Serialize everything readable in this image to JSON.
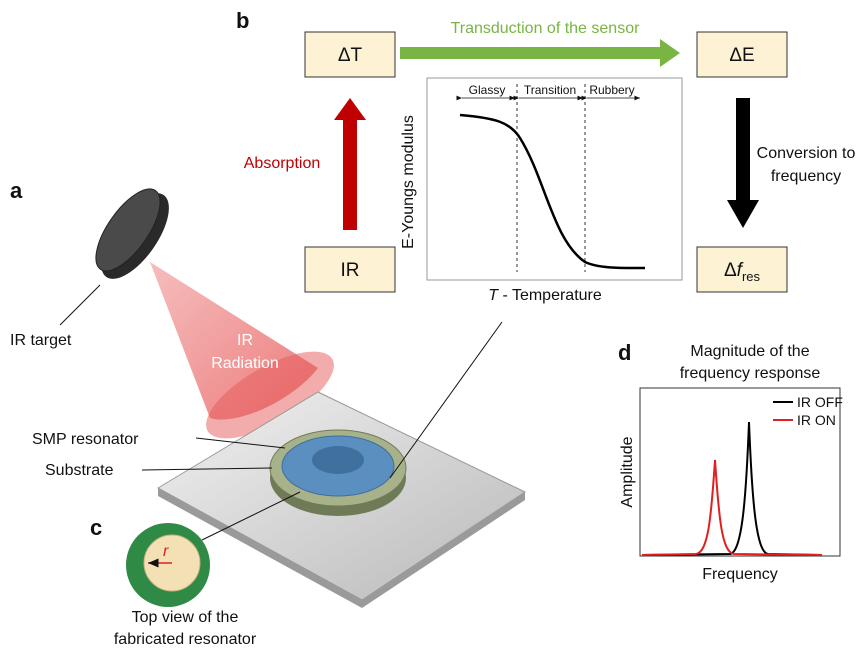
{
  "panels": {
    "a": "a",
    "b": "b",
    "c": "c",
    "d": "d"
  },
  "boxes": {
    "delta_t": "ΔT",
    "delta_e": "ΔE",
    "ir": "IR",
    "delta_f": {
      "prefix": "Δ",
      "symbol": "f",
      "subscript": "res"
    }
  },
  "arrows": {
    "transduction": "Transduction of the sensor",
    "absorption": "Absorption",
    "conversion": [
      "Conversion to",
      "frequency"
    ]
  },
  "modulus_plot": {
    "regions": [
      "Glassy",
      "Transition",
      "Rubbery"
    ],
    "y_label": "E-Youngs modulus",
    "x_label": {
      "symbol": "T",
      "text": " - Temperature"
    }
  },
  "setup": {
    "ir_target": "IR target",
    "ir_radiation": [
      "IR",
      "Radiation"
    ],
    "smp_resonator": "SMP resonator",
    "substrate": "Substrate"
  },
  "top_view": {
    "radius": "r",
    "caption": [
      "Top view of the",
      "fabricated resonator"
    ]
  },
  "frequency_plot": {
    "title": [
      "Magnitude of the",
      "frequency response"
    ],
    "legend": [
      {
        "name": "IR OFF",
        "color": "#000000"
      },
      {
        "name": "IR ON",
        "color": "#e02020"
      }
    ],
    "y_label": "Amplitude",
    "x_label": "Frequency"
  }
}
